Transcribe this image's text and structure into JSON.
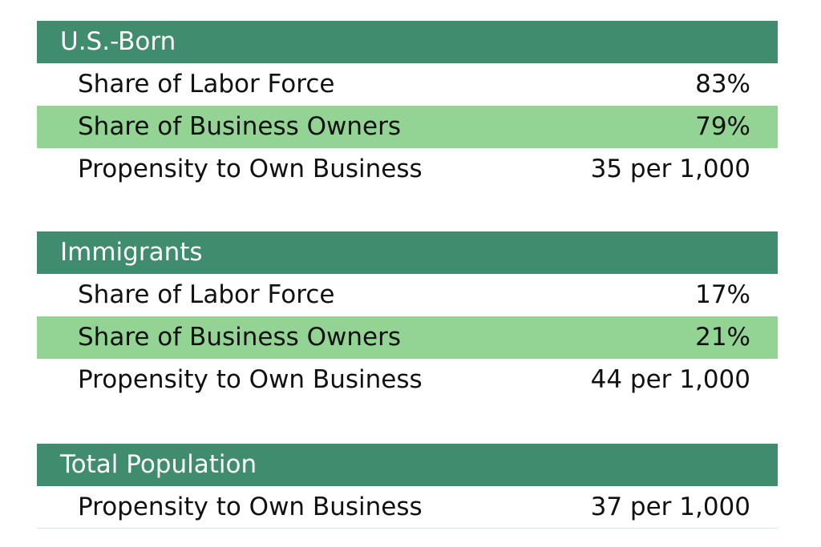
{
  "colors": {
    "header": "#3f8c6e",
    "highlight": "#93d494"
  },
  "chart_data": {
    "type": "table",
    "groups": [
      {
        "title": "U.S.-Born",
        "rows": [
          {
            "label": "Share of Labor Force",
            "value": "83%"
          },
          {
            "label": "Share of Business Owners",
            "value": "79%"
          },
          {
            "label": "Propensity to Own Business",
            "value": "35 per 1,000"
          }
        ]
      },
      {
        "title": "Immigrants",
        "rows": [
          {
            "label": "Share of Labor Force",
            "value": "17%"
          },
          {
            "label": "Share of Business Owners",
            "value": "21%"
          },
          {
            "label": "Propensity to Own Business",
            "value": "44 per 1,000"
          }
        ]
      },
      {
        "title": "Total Population",
        "rows": [
          {
            "label": "Propensity to Own Business",
            "value": "37 per 1,000"
          }
        ]
      }
    ]
  }
}
